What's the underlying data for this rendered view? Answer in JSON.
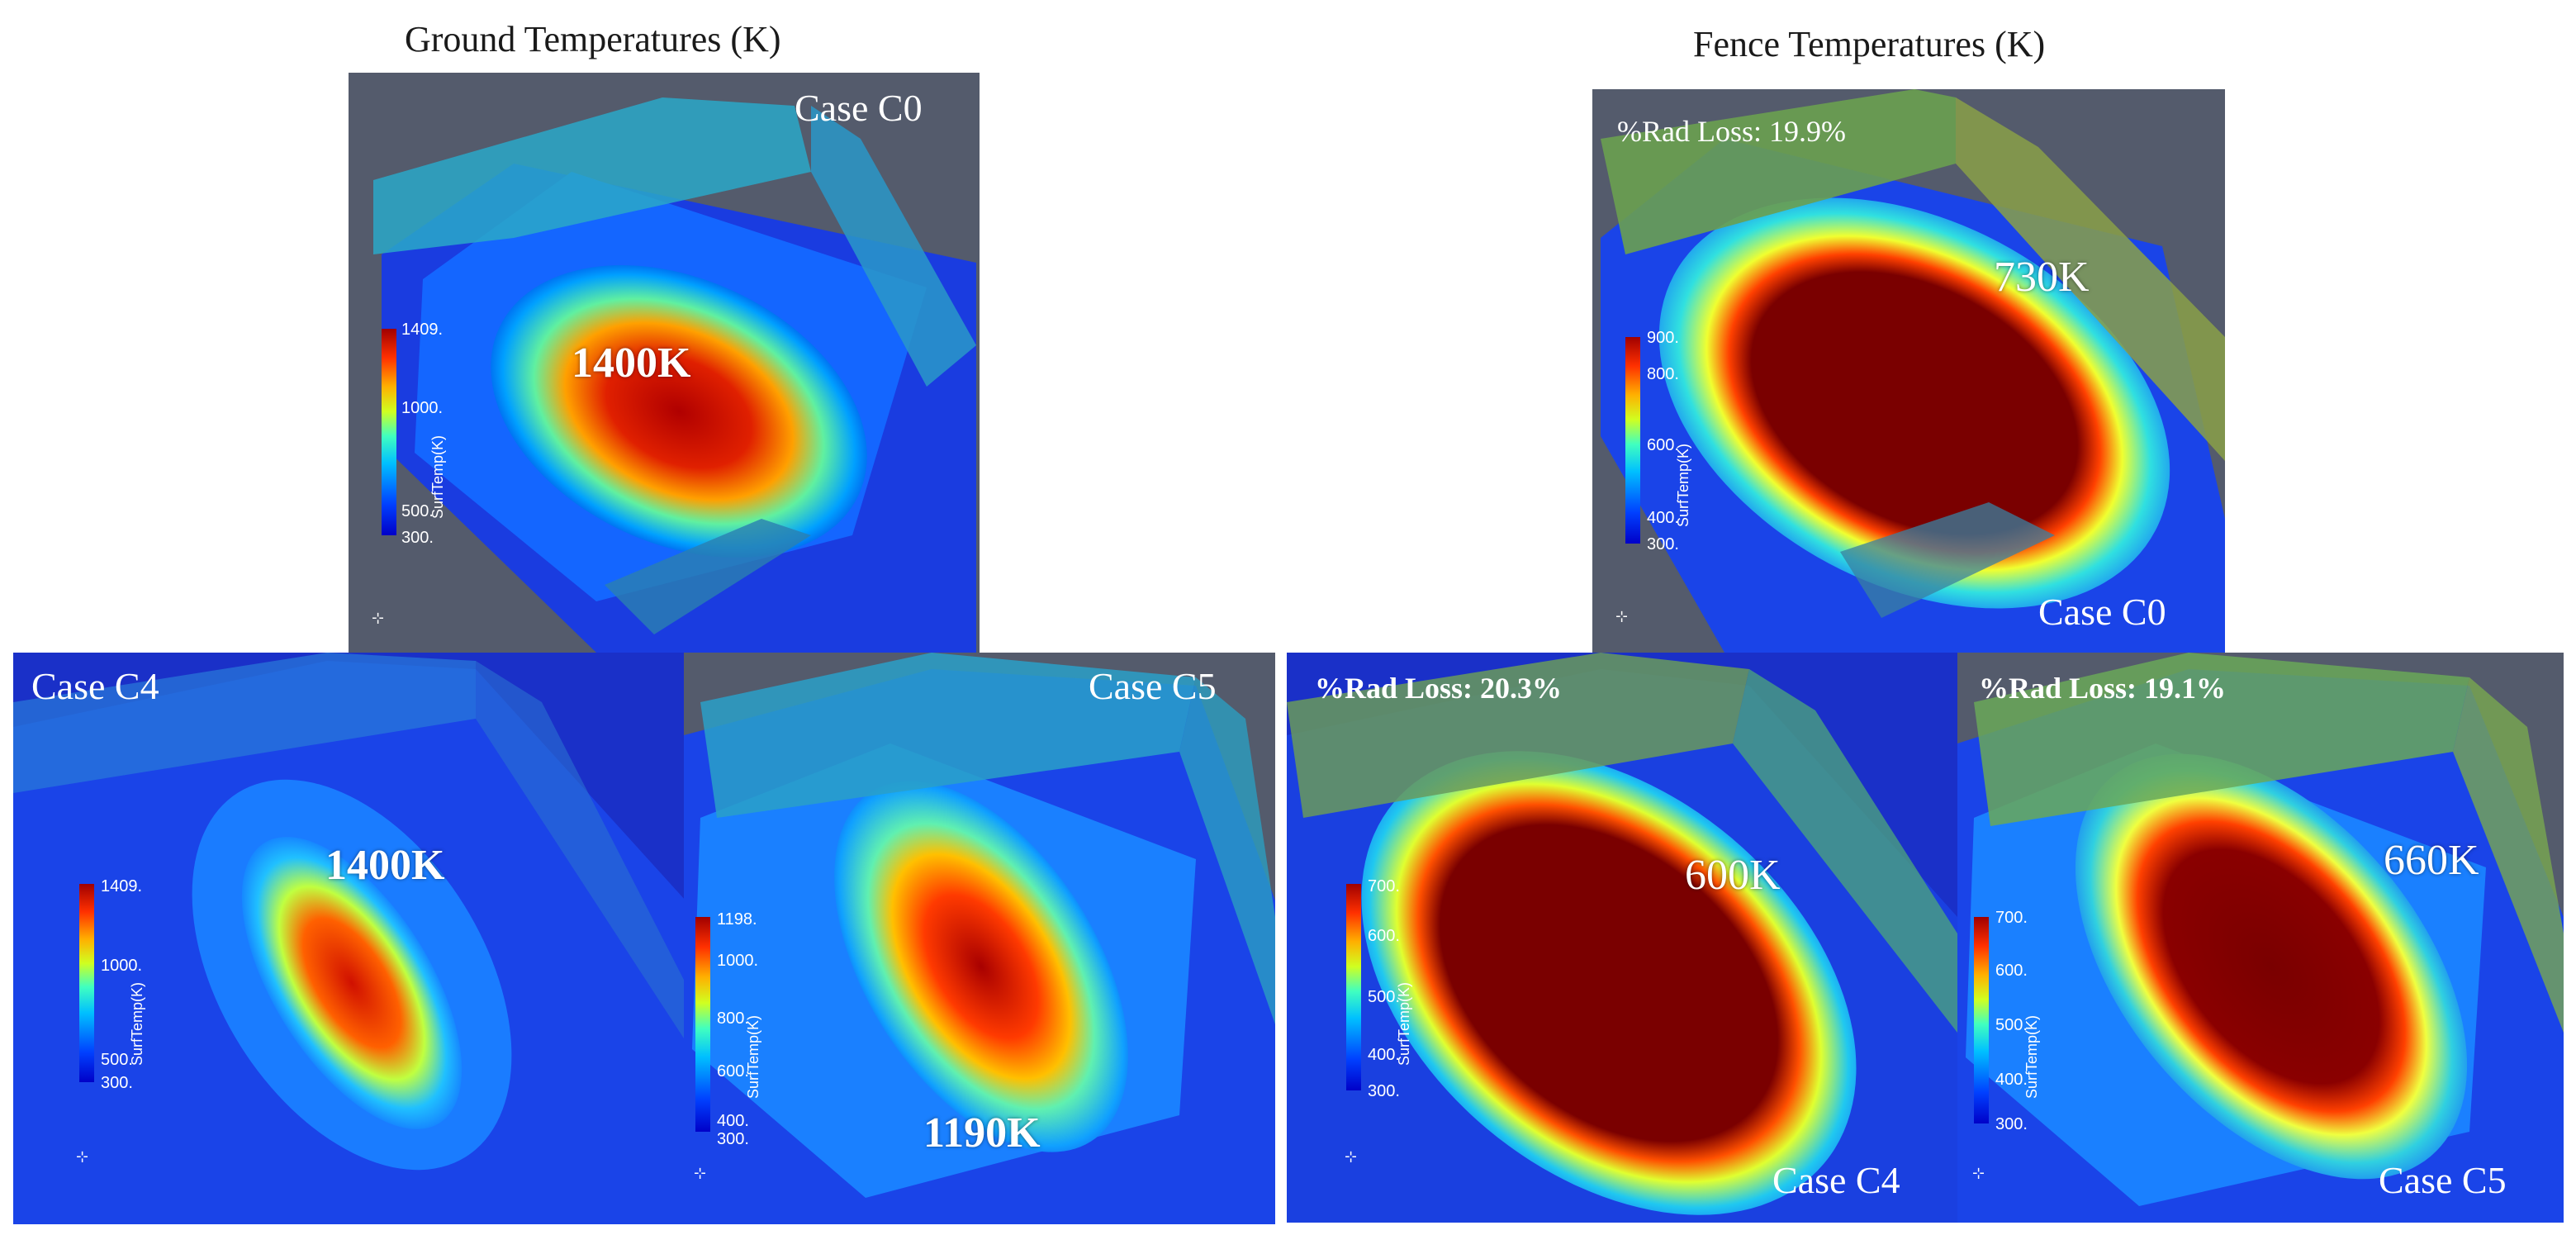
{
  "headings": {
    "ground": "Ground Temperatures (K)",
    "fence": "Fence Temperatures (K)"
  },
  "colorbar_title": "SurfTemp(K)",
  "panels": {
    "ground_c0": {
      "case": "Case C0",
      "temp": "1400K",
      "ticks": [
        "1409.",
        "1000.",
        "500.",
        "300."
      ]
    },
    "ground_c4": {
      "case": "Case C4",
      "temp": "1400K",
      "ticks": [
        "1409.",
        "1000.",
        "500.",
        "300."
      ]
    },
    "ground_c5": {
      "case": "Case C5",
      "temp": "1190K",
      "ticks": [
        "1198.",
        "1000.",
        "800.",
        "600.",
        "400.",
        "300."
      ]
    },
    "fence_c0": {
      "case": "Case C0",
      "temp": "730K",
      "rad_loss": "%Rad Loss: 19.9%",
      "ticks": [
        "900.",
        "800.",
        "600.",
        "400.",
        "300."
      ]
    },
    "fence_c4": {
      "case": "Case C4",
      "temp": "600K",
      "rad_loss": "%Rad Loss: 20.3%",
      "ticks": [
        "700.",
        "600.",
        "500.",
        "400.",
        "300."
      ]
    },
    "fence_c5": {
      "case": "Case C5",
      "temp": "660K",
      "rad_loss": "%Rad Loss: 19.1%",
      "ticks": [
        "700.",
        "600.",
        "500.",
        "400.",
        "300."
      ]
    }
  }
}
